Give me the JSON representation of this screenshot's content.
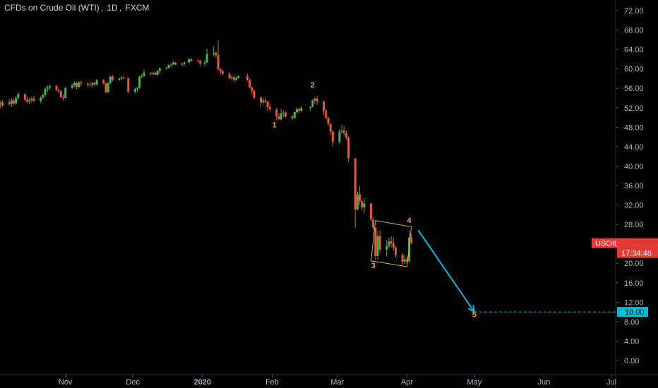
{
  "header": {
    "instrument": "CFDs on Crude Oil (WTI)",
    "interval": "1D",
    "exchange": "FXCM"
  },
  "chart_data": {
    "type": "candlestick",
    "symbol": "USOIL",
    "current_price_label": "USOIL - 24.14",
    "countdown_label": "17:34:46",
    "target_price_label": "10.00",
    "colors": {
      "up": "#26a69a",
      "down": "#ef5350",
      "up_draw": "#4caf50",
      "down_draw": "#e05a3a",
      "target": "#00bcd4",
      "box": "#d7a35a",
      "wave_label": "#f0a058",
      "price_tag": "#e53935"
    },
    "y_axis": {
      "ticks": [
        "72.00",
        "68.00",
        "64.00",
        "60.00",
        "56.00",
        "52.00",
        "48.00",
        "44.00",
        "40.00",
        "36.00",
        "32.00",
        "28.00",
        "24.00",
        "20.00",
        "16.00",
        "12.00",
        "8.00",
        "4.00",
        "0.00"
      ],
      "range": [
        0,
        72
      ]
    },
    "x_axis": {
      "ticks": [
        "Nov",
        "Dec",
        "2020",
        "Feb",
        "Mar",
        "Apr",
        "May",
        "Jun",
        "Jul"
      ],
      "range": [
        "2019-10-01",
        "2020-07-01"
      ]
    },
    "ohlc": [
      [
        "2019-10-01",
        53.6,
        54.1,
        52.9,
        53.3
      ],
      [
        "2019-10-02",
        53.3,
        53.8,
        52.1,
        52.6
      ],
      [
        "2019-10-03",
        52.6,
        53.4,
        51.9,
        52.5
      ],
      [
        "2019-10-04",
        52.5,
        53.6,
        52.2,
        53.1
      ],
      [
        "2019-10-07",
        53.1,
        53.9,
        52.4,
        52.8
      ],
      [
        "2019-10-08",
        52.8,
        54.0,
        52.2,
        53.5
      ],
      [
        "2019-10-09",
        53.5,
        53.9,
        52.6,
        52.9
      ],
      [
        "2019-10-10",
        52.9,
        54.5,
        52.6,
        54.0
      ],
      [
        "2019-10-11",
        54.0,
        55.2,
        53.6,
        54.8
      ],
      [
        "2019-10-14",
        54.8,
        55.0,
        53.3,
        53.6
      ],
      [
        "2019-10-15",
        53.6,
        54.2,
        52.9,
        53.3
      ],
      [
        "2019-10-16",
        53.3,
        54.1,
        52.8,
        53.6
      ],
      [
        "2019-10-17",
        53.6,
        54.3,
        53.0,
        53.9
      ],
      [
        "2019-10-18",
        53.9,
        54.5,
        53.2,
        53.4
      ],
      [
        "2019-10-21",
        53.4,
        54.3,
        53.0,
        54.1
      ],
      [
        "2019-10-22",
        54.1,
        55.0,
        53.8,
        54.6
      ],
      [
        "2019-10-23",
        54.6,
        56.2,
        54.2,
        55.9
      ],
      [
        "2019-10-24",
        55.9,
        56.6,
        55.3,
        56.2
      ],
      [
        "2019-10-25",
        56.2,
        56.8,
        55.7,
        56.5
      ],
      [
        "2019-10-28",
        56.5,
        56.7,
        55.4,
        55.6
      ],
      [
        "2019-10-29",
        55.6,
        56.0,
        54.9,
        55.4
      ],
      [
        "2019-10-30",
        55.4,
        55.7,
        54.0,
        54.2
      ],
      [
        "2019-10-31",
        54.2,
        54.7,
        53.5,
        54.0
      ],
      [
        "2019-11-01",
        54.0,
        56.3,
        53.9,
        56.1
      ],
      [
        "2019-11-04",
        56.1,
        57.0,
        55.8,
        56.6
      ],
      [
        "2019-11-05",
        56.6,
        57.4,
        56.2,
        57.1
      ],
      [
        "2019-11-06",
        57.1,
        57.3,
        55.8,
        56.3
      ],
      [
        "2019-11-07",
        56.3,
        57.5,
        56.0,
        57.2
      ],
      [
        "2019-11-08",
        57.2,
        57.6,
        56.5,
        57.0
      ],
      [
        "2019-11-11",
        57.0,
        57.2,
        56.4,
        56.8
      ],
      [
        "2019-11-12",
        56.8,
        57.4,
        56.3,
        56.7
      ],
      [
        "2019-11-13",
        56.7,
        57.3,
        56.1,
        57.1
      ],
      [
        "2019-11-14",
        57.1,
        57.4,
        56.4,
        56.8
      ],
      [
        "2019-11-15",
        56.8,
        57.9,
        56.6,
        57.7
      ],
      [
        "2019-11-18",
        57.7,
        57.9,
        56.8,
        57.0
      ],
      [
        "2019-11-19",
        57.0,
        57.2,
        55.0,
        55.2
      ],
      [
        "2019-11-20",
        55.2,
        57.3,
        55.1,
        57.1
      ],
      [
        "2019-11-21",
        57.1,
        58.6,
        56.9,
        58.4
      ],
      [
        "2019-11-22",
        58.4,
        58.7,
        57.5,
        57.8
      ],
      [
        "2019-11-25",
        57.8,
        58.2,
        57.6,
        58.0
      ],
      [
        "2019-11-26",
        58.0,
        58.5,
        57.7,
        58.2
      ],
      [
        "2019-11-27",
        58.2,
        58.5,
        57.9,
        58.1
      ],
      [
        "2019-11-29",
        58.1,
        58.1,
        55.0,
        55.3
      ],
      [
        "2019-12-02",
        55.3,
        56.2,
        54.9,
        55.9
      ],
      [
        "2019-12-03",
        55.9,
        56.3,
        55.3,
        56.1
      ],
      [
        "2019-12-04",
        56.1,
        58.6,
        56.0,
        58.4
      ],
      [
        "2019-12-05",
        58.4,
        59.0,
        58.1,
        58.5
      ],
      [
        "2019-12-06",
        58.5,
        59.9,
        58.4,
        59.2
      ],
      [
        "2019-12-09",
        59.2,
        59.3,
        58.7,
        59.0
      ],
      [
        "2019-12-10",
        59.0,
        59.4,
        58.8,
        59.2
      ],
      [
        "2019-12-11",
        59.2,
        59.4,
        58.7,
        58.8
      ],
      [
        "2019-12-12",
        58.8,
        59.8,
        58.6,
        59.6
      ],
      [
        "2019-12-13",
        59.6,
        60.3,
        59.0,
        60.1
      ],
      [
        "2019-12-16",
        60.1,
        60.4,
        59.8,
        60.2
      ],
      [
        "2019-12-17",
        60.2,
        60.9,
        60.0,
        60.8
      ],
      [
        "2019-12-18",
        60.8,
        61.1,
        60.3,
        60.9
      ],
      [
        "2019-12-19",
        60.9,
        61.6,
        60.8,
        61.3
      ],
      [
        "2019-12-20",
        61.3,
        61.5,
        60.7,
        60.9
      ],
      [
        "2019-12-23",
        60.9,
        61.3,
        60.6,
        61.1
      ],
      [
        "2019-12-24",
        61.1,
        61.5,
        60.8,
        61.3
      ],
      [
        "2019-12-26",
        61.3,
        62.2,
        61.2,
        62.0
      ],
      [
        "2019-12-27",
        62.0,
        62.3,
        61.5,
        61.7
      ],
      [
        "2019-12-30",
        61.7,
        62.0,
        61.4,
        61.6
      ],
      [
        "2019-12-31",
        61.6,
        61.9,
        60.6,
        61.1
      ],
      [
        "2020-01-02",
        61.1,
        61.8,
        60.6,
        61.3
      ],
      [
        "2020-01-03",
        61.3,
        64.1,
        61.2,
        63.1
      ],
      [
        "2020-01-06",
        63.1,
        64.7,
        62.6,
        63.3
      ],
      [
        "2020-01-07",
        63.3,
        63.6,
        62.3,
        62.8
      ],
      [
        "2020-01-08",
        62.8,
        65.8,
        59.7,
        59.9
      ],
      [
        "2020-01-09",
        59.9,
        60.2,
        58.9,
        59.5
      ],
      [
        "2020-01-10",
        59.5,
        59.8,
        58.7,
        59.0
      ],
      [
        "2020-01-13",
        59.0,
        59.3,
        57.9,
        58.1
      ],
      [
        "2020-01-14",
        58.1,
        58.7,
        57.6,
        58.3
      ],
      [
        "2020-01-15",
        58.3,
        58.6,
        57.3,
        57.7
      ],
      [
        "2020-01-16",
        57.7,
        58.4,
        57.6,
        58.1
      ],
      [
        "2020-01-17",
        58.1,
        58.7,
        58.0,
        58.5
      ],
      [
        "2020-01-21",
        58.5,
        59.0,
        57.5,
        57.8
      ],
      [
        "2020-01-22",
        57.8,
        58.0,
        56.0,
        56.2
      ],
      [
        "2020-01-23",
        56.2,
        56.5,
        54.8,
        55.5
      ],
      [
        "2020-01-24",
        55.5,
        55.8,
        53.8,
        54.1
      ],
      [
        "2020-01-27",
        54.1,
        54.3,
        52.2,
        53.1
      ],
      [
        "2020-01-28",
        53.1,
        54.0,
        52.6,
        53.5
      ],
      [
        "2020-01-29",
        53.5,
        54.2,
        52.9,
        53.3
      ],
      [
        "2020-01-30",
        53.3,
        53.5,
        51.3,
        52.1
      ],
      [
        "2020-01-31",
        52.1,
        53.0,
        51.2,
        51.7
      ],
      [
        "2020-02-03",
        51.7,
        52.0,
        49.3,
        50.2
      ],
      [
        "2020-02-04",
        50.2,
        50.8,
        49.6,
        49.6
      ],
      [
        "2020-02-05",
        49.6,
        51.8,
        49.4,
        50.9
      ],
      [
        "2020-02-06",
        50.9,
        51.5,
        50.0,
        51.0
      ],
      [
        "2020-02-07",
        51.0,
        51.3,
        49.9,
        50.2
      ],
      [
        "2020-02-10",
        50.2,
        50.5,
        49.4,
        49.9
      ],
      [
        "2020-02-11",
        49.9,
        51.3,
        49.7,
        51.1
      ],
      [
        "2020-02-12",
        51.1,
        52.0,
        50.8,
        51.7
      ],
      [
        "2020-02-13",
        51.7,
        52.0,
        50.8,
        51.4
      ],
      [
        "2020-02-14",
        51.4,
        52.3,
        51.2,
        52.0
      ],
      [
        "2020-02-18",
        52.0,
        52.3,
        51.4,
        52.2
      ],
      [
        "2020-02-19",
        52.2,
        53.7,
        52.0,
        53.5
      ],
      [
        "2020-02-20",
        53.5,
        54.2,
        52.8,
        53.9
      ],
      [
        "2020-02-21",
        53.9,
        54.5,
        52.6,
        53.3
      ],
      [
        "2020-02-24",
        53.3,
        53.5,
        50.5,
        51.4
      ],
      [
        "2020-02-25",
        51.4,
        51.8,
        49.6,
        49.9
      ],
      [
        "2020-02-26",
        49.9,
        50.2,
        48.2,
        48.7
      ],
      [
        "2020-02-27",
        48.7,
        48.8,
        46.4,
        47.1
      ],
      [
        "2020-02-28",
        47.1,
        47.4,
        44.0,
        45.0
      ],
      [
        "2020-03-02",
        45.0,
        47.6,
        44.5,
        47.1
      ],
      [
        "2020-03-03",
        47.1,
        48.5,
        46.6,
        47.3
      ],
      [
        "2020-03-04",
        47.3,
        48.2,
        46.2,
        46.8
      ],
      [
        "2020-03-05",
        46.8,
        47.3,
        45.4,
        45.9
      ],
      [
        "2020-03-06",
        45.9,
        46.2,
        40.9,
        41.6
      ],
      [
        "2020-03-09",
        41.6,
        41.6,
        27.3,
        31.1
      ],
      [
        "2020-03-10",
        31.1,
        34.8,
        30.9,
        34.2
      ],
      [
        "2020-03-11",
        34.2,
        35.9,
        32.0,
        32.8
      ],
      [
        "2020-03-12",
        32.8,
        33.0,
        30.9,
        31.5
      ],
      [
        "2020-03-13",
        31.5,
        33.4,
        30.3,
        32.3
      ],
      [
        "2020-03-16",
        32.3,
        32.4,
        28.5,
        29.0
      ],
      [
        "2020-03-17",
        29.0,
        29.5,
        26.8,
        27.3
      ],
      [
        "2020-03-18",
        27.3,
        27.4,
        20.6,
        21.5
      ],
      [
        "2020-03-19",
        21.5,
        26.6,
        20.8,
        25.6
      ],
      [
        "2020-03-20",
        25.6,
        26.8,
        22.2,
        22.8
      ],
      [
        "2020-03-23",
        22.8,
        24.8,
        21.5,
        23.6
      ],
      [
        "2020-03-24",
        23.6,
        25.3,
        23.2,
        24.5
      ],
      [
        "2020-03-25",
        24.5,
        25.6,
        23.4,
        24.1
      ],
      [
        "2020-03-26",
        24.1,
        25.3,
        22.6,
        23.2
      ],
      [
        "2020-03-27",
        23.2,
        23.5,
        21.2,
        21.7
      ],
      [
        "2020-03-30",
        21.7,
        22.1,
        19.5,
        20.3
      ],
      [
        "2020-03-31",
        20.3,
        21.7,
        19.8,
        20.8
      ],
      [
        "2020-04-01",
        20.8,
        21.4,
        19.9,
        20.4
      ],
      [
        "2020-04-02",
        20.4,
        26.8,
        20.2,
        25.3
      ],
      [
        "2020-04-03",
        25.3,
        26.1,
        23.9,
        24.14
      ]
    ],
    "annotations": {
      "wave_labels": [
        {
          "text": "1",
          "date": "2020-02-02",
          "price": 48.0
        },
        {
          "text": "2",
          "date": "2020-02-19",
          "price": 56.2
        },
        {
          "text": "3",
          "date": "2020-03-17",
          "price": 19.0
        },
        {
          "text": "4",
          "date": "2020-04-02",
          "price": 28.3
        },
        {
          "text": "5",
          "date": "2020-05-01",
          "price": 8.9
        }
      ],
      "box": [
        [
          "2020-03-18",
          28.8
        ],
        [
          "2020-04-03",
          27.5
        ],
        [
          "2020-04-01",
          19.3
        ],
        [
          "2020-03-16",
          20.5
        ]
      ],
      "target_arrow": {
        "from": [
          "2020-04-06",
          26.8
        ],
        "to": [
          "2020-05-01",
          10.0
        ]
      },
      "target_line": {
        "price": 10.0,
        "from": "2020-05-01"
      }
    }
  }
}
